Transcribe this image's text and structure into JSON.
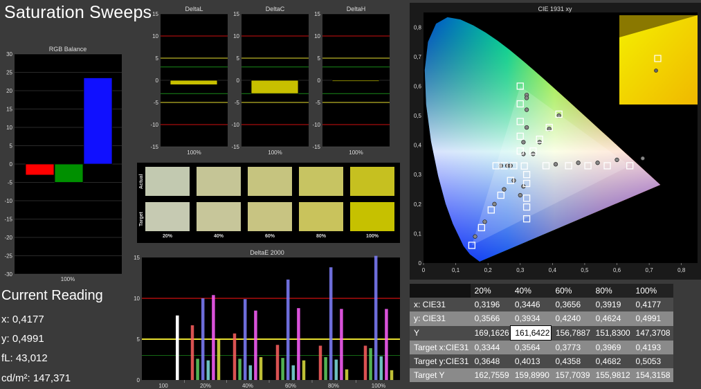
{
  "page": {
    "title": "Saturation Sweeps"
  },
  "colors": {
    "panel_bg": "#000000",
    "grid": "#555555",
    "red_line": "#d01010",
    "yellow_line": "#e8e030",
    "green_line": "#1a8a1a"
  },
  "rgb_balance": {
    "title": "RGB Balance",
    "yticks": [
      "30",
      "25",
      "20",
      "15",
      "10",
      "5",
      "0",
      "-5",
      "-10",
      "-15",
      "-20",
      "-25",
      "-30"
    ],
    "xlabel": "100%"
  },
  "delta_charts": [
    {
      "title": "DeltaL",
      "xlabel": "100%"
    },
    {
      "title": "DeltaC",
      "xlabel": "100%"
    },
    {
      "title": "DeltaH",
      "xlabel": "100%"
    }
  ],
  "delta_yticks": [
    "15",
    "10",
    "5",
    "0",
    "-5",
    "-10",
    "-15"
  ],
  "swatches": {
    "actual_label": "Actual",
    "target_label": "Target",
    "labels": [
      "20%",
      "40%",
      "60%",
      "80%",
      "100%"
    ],
    "actual_colors": [
      "#c2c9b0",
      "#c5c596",
      "#c6c47f",
      "#c7c462",
      "#c6c020"
    ],
    "target_colors": [
      "#c6cab2",
      "#c7c69a",
      "#c8c482",
      "#c9c35c",
      "#c6c100"
    ]
  },
  "deltae": {
    "title": "DeltaE 2000",
    "yticks": [
      "15",
      "10",
      "5",
      "0"
    ],
    "xlabels": [
      "100",
      "20%",
      "40%",
      "60%",
      "80%",
      "100%"
    ]
  },
  "cie": {
    "title": "CIE 1931 xy",
    "xticks": [
      "0",
      "0,1",
      "0,2",
      "0,3",
      "0,4",
      "0,5",
      "0,6",
      "0,7",
      "0,8"
    ],
    "yticks": [
      "0,8",
      "0,7",
      "0,6",
      "0,5",
      "0,4",
      "0,3",
      "0,2",
      "0,1",
      "0"
    ]
  },
  "chart_data": [
    {
      "type": "bar",
      "title": "RGB Balance",
      "categories": [
        "100%"
      ],
      "series": [
        {
          "name": "R",
          "color": "#ff0000",
          "values": [
            -3
          ]
        },
        {
          "name": "G",
          "color": "#009000",
          "values": [
            -5
          ]
        },
        {
          "name": "B",
          "color": "#1010ff",
          "values": [
            23.5
          ]
        }
      ],
      "ylim": [
        -30,
        30
      ]
    },
    {
      "type": "bar",
      "title": "DeltaL",
      "categories": [
        "100%"
      ],
      "values": [
        -1
      ],
      "ylim": [
        -15,
        15
      ],
      "color": "#c8c000"
    },
    {
      "type": "bar",
      "title": "DeltaC",
      "categories": [
        "100%"
      ],
      "values": [
        -3
      ],
      "ylim": [
        -15,
        15
      ],
      "color": "#c8c000"
    },
    {
      "type": "bar",
      "title": "DeltaH",
      "categories": [
        "100%"
      ],
      "values": [
        -0.2
      ],
      "ylim": [
        -15,
        15
      ],
      "color": "#c8c000"
    },
    {
      "type": "bar",
      "title": "DeltaE 2000",
      "categories": [
        "20%",
        "40%",
        "60%",
        "80%",
        "100%"
      ],
      "series": [
        {
          "name": "Red",
          "color": "#ff6060",
          "values": [
            6.7,
            5.7,
            4.3,
            4.2,
            4.2
          ]
        },
        {
          "name": "Green",
          "color": "#60d060",
          "values": [
            2.6,
            2.6,
            2.7,
            2.8,
            3.9
          ]
        },
        {
          "name": "Blue",
          "color": "#8080ff",
          "values": [
            10.0,
            9.9,
            12.3,
            13.8,
            15.2
          ]
        },
        {
          "name": "Cyan",
          "color": "#80e0e0",
          "values": [
            2.4,
            1.8,
            1.8,
            2.5,
            2.9
          ]
        },
        {
          "name": "Magenta",
          "color": "#ff60ff",
          "values": [
            10.4,
            8.5,
            8.8,
            8.7,
            8.7
          ]
        },
        {
          "name": "Yellow",
          "color": "#e0e040",
          "values": [
            5.0,
            2.8,
            2.4,
            1.3,
            1.2
          ]
        }
      ],
      "extra": {
        "category": "100",
        "value": 7.9,
        "color": "#ffffff"
      },
      "ylim": [
        0,
        15
      ]
    },
    {
      "type": "scatter",
      "title": "CIE 1931 xy",
      "xlim": [
        0,
        0.85
      ],
      "ylim": [
        0,
        0.85
      ],
      "target_points": [
        [
          0.64,
          0.33
        ],
        [
          0.57,
          0.33
        ],
        [
          0.51,
          0.33
        ],
        [
          0.45,
          0.33
        ],
        [
          0.38,
          0.33
        ],
        [
          0.3,
          0.6
        ],
        [
          0.3,
          0.54
        ],
        [
          0.3,
          0.48
        ],
        [
          0.3,
          0.43
        ],
        [
          0.3,
          0.38
        ],
        [
          0.15,
          0.06
        ],
        [
          0.18,
          0.12
        ],
        [
          0.21,
          0.18
        ],
        [
          0.24,
          0.23
        ],
        [
          0.27,
          0.28
        ],
        [
          0.225,
          0.33
        ],
        [
          0.25,
          0.33
        ],
        [
          0.28,
          0.33
        ],
        [
          0.42,
          0.505
        ],
        [
          0.39,
          0.46
        ],
        [
          0.36,
          0.42
        ],
        [
          0.34,
          0.38
        ],
        [
          0.32,
          0.22
        ],
        [
          0.32,
          0.19
        ],
        [
          0.32,
          0.15
        ],
        [
          0.32,
          0.3
        ],
        [
          0.32,
          0.27
        ],
        [
          0.3127,
          0.329
        ]
      ],
      "measured_points": [
        [
          0.68,
          0.355
        ],
        [
          0.6,
          0.35
        ],
        [
          0.54,
          0.34
        ],
        [
          0.48,
          0.34
        ],
        [
          0.41,
          0.335
        ],
        [
          0.32,
          0.57
        ],
        [
          0.32,
          0.52
        ],
        [
          0.32,
          0.46
        ],
        [
          0.31,
          0.41
        ],
        [
          0.31,
          0.37
        ],
        [
          0.16,
          0.09
        ],
        [
          0.19,
          0.14
        ],
        [
          0.22,
          0.2
        ],
        [
          0.25,
          0.25
        ],
        [
          0.28,
          0.28
        ],
        [
          0.24,
          0.33
        ],
        [
          0.26,
          0.33
        ],
        [
          0.27,
          0.33
        ],
        [
          0.42,
          0.5
        ],
        [
          0.39,
          0.455
        ],
        [
          0.36,
          0.41
        ],
        [
          0.34,
          0.37
        ],
        [
          0.31,
          0.26
        ],
        [
          0.3,
          0.23
        ],
        [
          0.32,
          0.56
        ]
      ]
    },
    {
      "type": "table",
      "columns": [
        "",
        "20%",
        "40%",
        "60%",
        "80%",
        "100%"
      ],
      "rows": [
        [
          "x: CIE31",
          "0,3196",
          "0,3446",
          "0,3656",
          "0,3919",
          "0,4177"
        ],
        [
          "y: CIE31",
          "0,3566",
          "0,3934",
          "0,4240",
          "0,4624",
          "0,4991"
        ],
        [
          "Y",
          "169,1626",
          "161,6422",
          "156,7887",
          "151,8300",
          "147,3708"
        ],
        [
          "Target x:CIE31",
          "0,3344",
          "0,3564",
          "0,3773",
          "0,3969",
          "0,4193"
        ],
        [
          "Target y:CIE31",
          "0,3648",
          "0,4013",
          "0,4358",
          "0,4682",
          "0,5053"
        ],
        [
          "Target Y",
          "162,7559",
          "159,8990",
          "157,7039",
          "155,9812",
          "154,3158"
        ]
      ],
      "highlight_cell": [
        2,
        2
      ]
    }
  ],
  "reading": {
    "title": "Current Reading",
    "lines": [
      "x: 0,4177",
      "y: 0,4991",
      "fL: 43,012",
      "cd/m²: 147,371"
    ]
  }
}
